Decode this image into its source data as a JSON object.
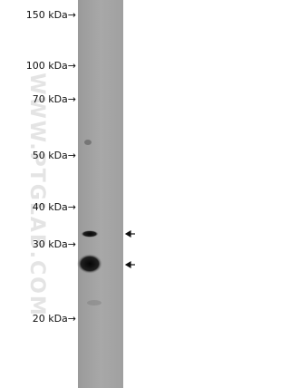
{
  "markers": [
    "150 kDa→",
    "100 kDa→",
    "70 kDa→",
    "50 kDa→",
    "40 kDa→",
    "30 kDa→",
    "20 kDa→"
  ],
  "watermark": "WWW.PTGLAB.COM"
}
